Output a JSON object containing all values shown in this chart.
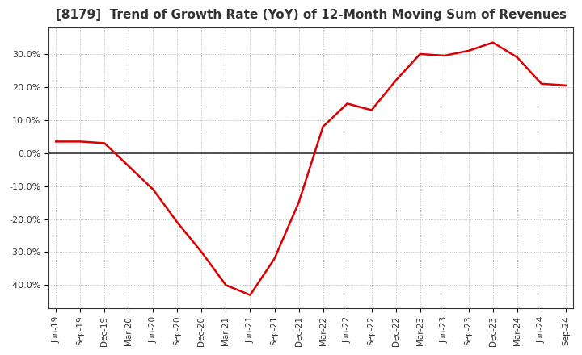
{
  "title": "[8179]  Trend of Growth Rate (YoY) of 12-Month Moving Sum of Revenues",
  "title_fontsize": 11,
  "background_color": "#ffffff",
  "line_color": "#dd0000",
  "grid_color": "#aaaaaa",
  "zero_line_color": "#333333",
  "x_labels": [
    "Jun-19",
    "Sep-19",
    "Dec-19",
    "Mar-20",
    "Jun-20",
    "Sep-20",
    "Dec-20",
    "Mar-21",
    "Jun-21",
    "Sep-21",
    "Dec-21",
    "Mar-22",
    "Jun-22",
    "Sep-22",
    "Dec-22",
    "Mar-23",
    "Jun-23",
    "Sep-23",
    "Dec-23",
    "Mar-24",
    "Jun-24",
    "Sep-24"
  ],
  "y_values": [
    3.5,
    3.5,
    3.0,
    -4.0,
    -11.0,
    -21.0,
    -30.0,
    -40.0,
    -43.0,
    -32.0,
    -15.0,
    8.0,
    15.0,
    13.0,
    22.0,
    30.0,
    29.5,
    31.0,
    33.5,
    29.0,
    21.0,
    20.5
  ],
  "ylim": [
    -47,
    38
  ],
  "yticks": [
    -40,
    -30,
    -20,
    -10,
    0,
    10,
    20,
    30
  ]
}
